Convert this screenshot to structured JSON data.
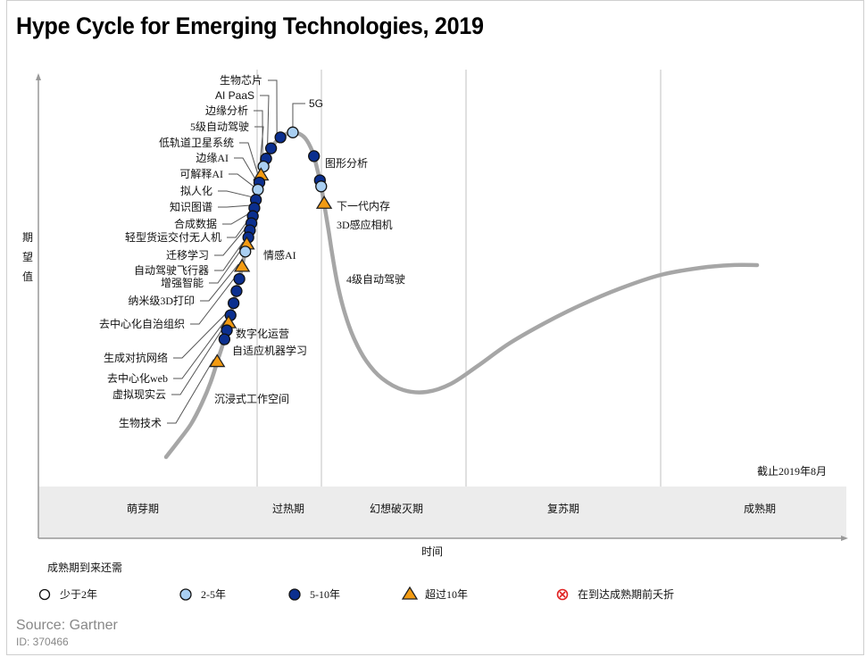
{
  "title": "Hype Cycle for Emerging Technologies, 2019",
  "source": "Source: Gartner",
  "source_id": "ID: 370466",
  "chart_data": {
    "type": "scatter",
    "title": "Hype Cycle for Emerging Technologies, 2019",
    "xlabel": "时间",
    "ylabel": "期望值",
    "as_of": "截止2019年8月",
    "grid": false,
    "phases": [
      "萌芽期",
      "过热期",
      "幻想破灭期",
      "复苏期",
      "成熟期"
    ],
    "legend": {
      "title": "成熟期到来还需",
      "placement": "bottom",
      "items": [
        {
          "key": "lt2",
          "label": "少于2年",
          "marker": "open-circle",
          "color": "#ffffff"
        },
        {
          "key": "2to5",
          "label": "2-5年",
          "marker": "circle",
          "color": "#a9cff2"
        },
        {
          "key": "5to10",
          "label": "5-10年",
          "marker": "circle",
          "color": "#0b2f8f"
        },
        {
          "key": "gt10",
          "label": "超过10年",
          "marker": "triangle",
          "color": "#f39b12"
        },
        {
          "key": "obsolete",
          "label": "在到达成熟期前夭折",
          "marker": "x-circle",
          "color": "#e02020"
        }
      ]
    },
    "points": [
      {
        "name": "生物芯片",
        "t": 0.332,
        "cat": "5to10",
        "label_side": "left"
      },
      {
        "name": "AI PaaS",
        "t": 0.318,
        "cat": "5to10",
        "label_side": "left"
      },
      {
        "name": "边缘分析",
        "t": 0.307,
        "cat": "5to10",
        "label_side": "left"
      },
      {
        "name": "5级自动驾驶",
        "t": 0.299,
        "cat": "2to5",
        "label_side": "left"
      },
      {
        "name": "5G",
        "t": 0.345,
        "cat": "2to5",
        "label_side": "right"
      },
      {
        "name": "低轨道卫星系统",
        "t": 0.29,
        "cat": "gt10",
        "label_side": "left"
      },
      {
        "name": "边缘AI",
        "t": 0.283,
        "cat": "5to10",
        "label_side": "left"
      },
      {
        "name": "可解释AI",
        "t": 0.276,
        "cat": "2to5",
        "label_side": "left"
      },
      {
        "name": "拟人化",
        "t": 0.266,
        "cat": "5to10",
        "label_side": "left"
      },
      {
        "name": "知识图谱",
        "t": 0.258,
        "cat": "5to10",
        "label_side": "left"
      },
      {
        "name": "合成数据",
        "t": 0.25,
        "cat": "5to10",
        "label_side": "left"
      },
      {
        "name": "轻型货运交付无人机",
        "t": 0.243,
        "cat": "5to10",
        "label_side": "left"
      },
      {
        "name": "迁移学习",
        "t": 0.236,
        "cat": "5to10",
        "label_side": "left"
      },
      {
        "name": "情感AI",
        "t": 0.229,
        "cat": "5to10",
        "label_side": "right"
      },
      {
        "name": "自动驾驶飞行器",
        "t": 0.222,
        "cat": "gt10",
        "label_side": "left"
      },
      {
        "name": "增强智能",
        "t": 0.215,
        "cat": "2to5",
        "label_side": "left"
      },
      {
        "name": "纳米级3D打印",
        "t": 0.2,
        "cat": "gt10",
        "label_side": "left"
      },
      {
        "name": "去中心化自治组织",
        "t": 0.188,
        "cat": "5to10",
        "label_side": "left"
      },
      {
        "name": "数字化运营",
        "t": 0.176,
        "cat": "5to10",
        "label_side": "right"
      },
      {
        "name": "自适应机器学习",
        "t": 0.164,
        "cat": "5to10",
        "label_side": "right"
      },
      {
        "name": "生成对抗网络",
        "t": 0.152,
        "cat": "5to10",
        "label_side": "left"
      },
      {
        "name": "去中心化web",
        "t": 0.144,
        "cat": "gt10",
        "label_side": "left"
      },
      {
        "name": "虚拟现实云",
        "t": 0.137,
        "cat": "5to10",
        "label_side": "left"
      },
      {
        "name": "沉浸式工作空间",
        "t": 0.128,
        "cat": "5to10",
        "label_side": "right"
      },
      {
        "name": "生物技术",
        "t": 0.105,
        "cat": "gt10",
        "label_side": "left"
      },
      {
        "name": "图形分析",
        "t": 0.378,
        "cat": "5to10",
        "label_side": "right"
      },
      {
        "name": "下一代内存",
        "t": 0.402,
        "cat": "5to10",
        "label_side": "right"
      },
      {
        "name": "3D感应相机",
        "t": 0.408,
        "cat": "2to5",
        "label_side": "right"
      },
      {
        "name": "4级自动驾驶",
        "t": 0.425,
        "cat": "gt10",
        "label_side": "right"
      }
    ]
  }
}
